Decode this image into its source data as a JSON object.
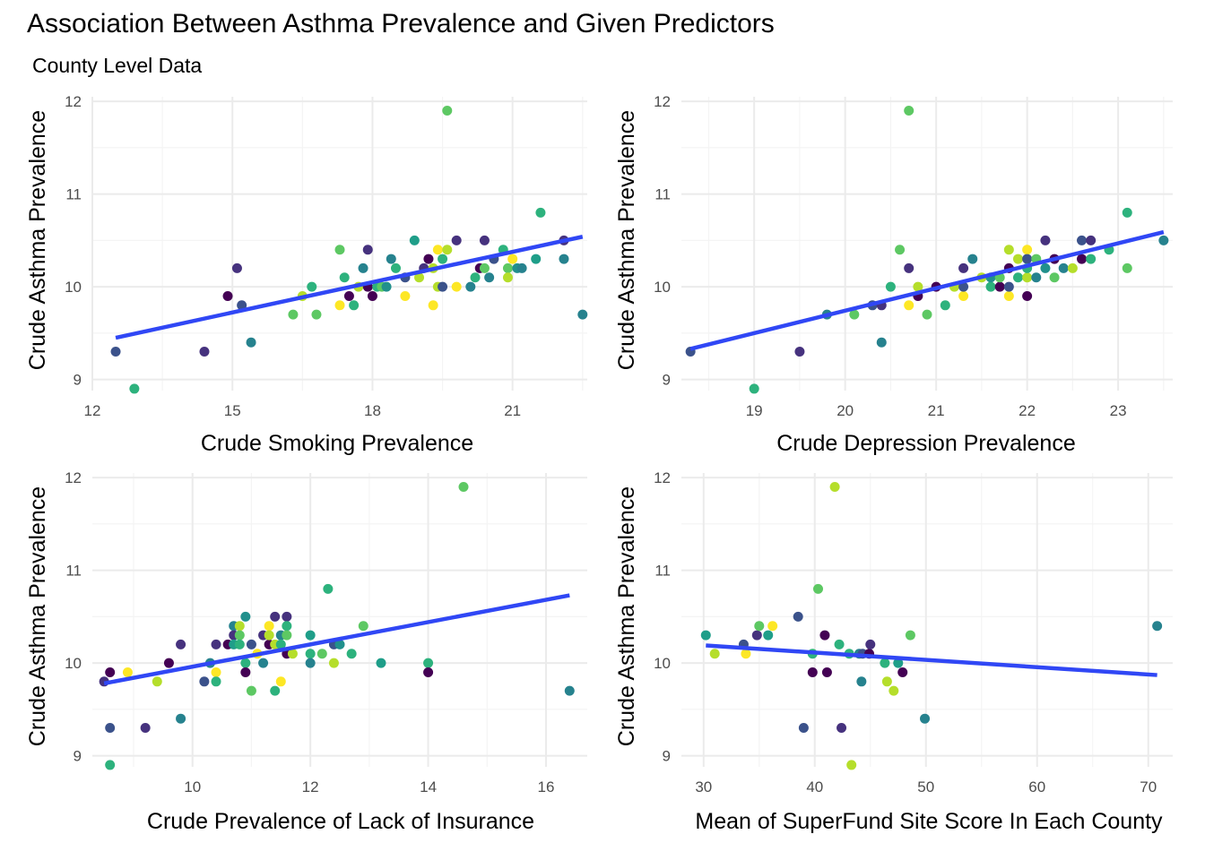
{
  "title": "Association Between Asthma Prevalence and Given Predictors",
  "subtitle": "County Level Data",
  "colors": {
    "trend_line": "#3047f5",
    "grid": "#ebebeb",
    "tick_text": "#4d4d4d",
    "point_palette": [
      "#440154",
      "#3b528b",
      "#21908c",
      "#2db27d",
      "#5dc863",
      "#b5de2b",
      "#fde725",
      "#26828e",
      "#46327e",
      "#1f9e89"
    ]
  },
  "chart_data": [
    {
      "type": "scatter",
      "xlabel": "Crude Smoking Prevalence",
      "ylabel": "Crude Asthma Prevalence",
      "xlim": [
        12,
        22.6
      ],
      "ylim": [
        8.88,
        12.05
      ],
      "x_ticks": [
        12,
        15,
        18,
        21
      ],
      "y_ticks": [
        9,
        10,
        11,
        12
      ],
      "trend": {
        "x": [
          12.5,
          22.5
        ],
        "y": [
          9.45,
          10.54
        ]
      },
      "points": [
        {
          "x": 12.5,
          "y": 9.3,
          "c": 1
        },
        {
          "x": 12.9,
          "y": 8.9,
          "c": 3
        },
        {
          "x": 14.4,
          "y": 9.3,
          "c": 8
        },
        {
          "x": 14.9,
          "y": 9.9,
          "c": 0
        },
        {
          "x": 15.1,
          "y": 10.2,
          "c": 8
        },
        {
          "x": 15.2,
          "y": 9.8,
          "c": 1
        },
        {
          "x": 15.4,
          "y": 9.4,
          "c": 7
        },
        {
          "x": 16.3,
          "y": 9.7,
          "c": 4
        },
        {
          "x": 16.5,
          "y": 9.9,
          "c": 5
        },
        {
          "x": 16.7,
          "y": 10.0,
          "c": 3
        },
        {
          "x": 16.8,
          "y": 9.7,
          "c": 4
        },
        {
          "x": 17.3,
          "y": 10.4,
          "c": 4
        },
        {
          "x": 17.3,
          "y": 9.8,
          "c": 6
        },
        {
          "x": 17.4,
          "y": 10.1,
          "c": 3
        },
        {
          "x": 17.5,
          "y": 9.9,
          "c": 0
        },
        {
          "x": 17.6,
          "y": 9.8,
          "c": 3
        },
        {
          "x": 17.7,
          "y": 10.0,
          "c": 5
        },
        {
          "x": 17.8,
          "y": 10.2,
          "c": 7
        },
        {
          "x": 17.9,
          "y": 10.4,
          "c": 8
        },
        {
          "x": 17.9,
          "y": 10.0,
          "c": 0
        },
        {
          "x": 18.0,
          "y": 9.9,
          "c": 0
        },
        {
          "x": 18.1,
          "y": 10.0,
          "c": 3
        },
        {
          "x": 18.2,
          "y": 10.0,
          "c": 4
        },
        {
          "x": 18.3,
          "y": 10.0,
          "c": 2
        },
        {
          "x": 18.4,
          "y": 10.3,
          "c": 7
        },
        {
          "x": 18.5,
          "y": 10.2,
          "c": 3
        },
        {
          "x": 18.7,
          "y": 9.9,
          "c": 6
        },
        {
          "x": 18.7,
          "y": 10.1,
          "c": 1
        },
        {
          "x": 18.9,
          "y": 10.5,
          "c": 9
        },
        {
          "x": 19.0,
          "y": 10.1,
          "c": 5
        },
        {
          "x": 19.1,
          "y": 10.2,
          "c": 8
        },
        {
          "x": 19.2,
          "y": 10.3,
          "c": 0
        },
        {
          "x": 19.3,
          "y": 10.2,
          "c": 5
        },
        {
          "x": 19.3,
          "y": 9.8,
          "c": 6
        },
        {
          "x": 19.4,
          "y": 10.4,
          "c": 6
        },
        {
          "x": 19.4,
          "y": 10.0,
          "c": 5
        },
        {
          "x": 19.5,
          "y": 10.0,
          "c": 1
        },
        {
          "x": 19.5,
          "y": 10.3,
          "c": 3
        },
        {
          "x": 19.6,
          "y": 11.9,
          "c": 4
        },
        {
          "x": 19.6,
          "y": 10.4,
          "c": 5
        },
        {
          "x": 19.8,
          "y": 10.0,
          "c": 6
        },
        {
          "x": 19.8,
          "y": 10.5,
          "c": 8
        },
        {
          "x": 20.1,
          "y": 10.0,
          "c": 7
        },
        {
          "x": 20.2,
          "y": 10.1,
          "c": 3
        },
        {
          "x": 20.3,
          "y": 10.2,
          "c": 0
        },
        {
          "x": 20.4,
          "y": 10.5,
          "c": 8
        },
        {
          "x": 20.4,
          "y": 10.2,
          "c": 4
        },
        {
          "x": 20.5,
          "y": 10.1,
          "c": 7
        },
        {
          "x": 20.6,
          "y": 10.3,
          "c": 1
        },
        {
          "x": 20.8,
          "y": 10.4,
          "c": 3
        },
        {
          "x": 20.9,
          "y": 10.2,
          "c": 4
        },
        {
          "x": 20.9,
          "y": 10.1,
          "c": 5
        },
        {
          "x": 21.0,
          "y": 10.3,
          "c": 6
        },
        {
          "x": 21.1,
          "y": 10.2,
          "c": 2
        },
        {
          "x": 21.2,
          "y": 10.2,
          "c": 7
        },
        {
          "x": 21.5,
          "y": 10.3,
          "c": 9
        },
        {
          "x": 21.6,
          "y": 10.8,
          "c": 3
        },
        {
          "x": 22.1,
          "y": 10.5,
          "c": 8
        },
        {
          "x": 22.1,
          "y": 10.3,
          "c": 7
        },
        {
          "x": 22.5,
          "y": 9.7,
          "c": 7
        }
      ]
    },
    {
      "type": "scatter",
      "xlabel": "Crude Depression Prevalence",
      "ylabel": "Crude Asthma Prevalence",
      "xlim": [
        18.2,
        23.6
      ],
      "ylim": [
        8.88,
        12.05
      ],
      "x_ticks": [
        19,
        20,
        21,
        22,
        23
      ],
      "y_ticks": [
        9,
        10,
        11,
        12
      ],
      "trend": {
        "x": [
          18.3,
          23.5
        ],
        "y": [
          9.33,
          10.59
        ]
      },
      "points": [
        {
          "x": 18.3,
          "y": 9.3,
          "c": 1
        },
        {
          "x": 19.0,
          "y": 8.9,
          "c": 3
        },
        {
          "x": 19.5,
          "y": 9.3,
          "c": 8
        },
        {
          "x": 19.8,
          "y": 9.7,
          "c": 7
        },
        {
          "x": 20.1,
          "y": 9.7,
          "c": 4
        },
        {
          "x": 20.3,
          "y": 9.8,
          "c": 1
        },
        {
          "x": 20.4,
          "y": 9.8,
          "c": 8
        },
        {
          "x": 20.4,
          "y": 9.4,
          "c": 7
        },
        {
          "x": 20.5,
          "y": 10.0,
          "c": 3
        },
        {
          "x": 20.6,
          "y": 10.4,
          "c": 4
        },
        {
          "x": 20.7,
          "y": 10.2,
          "c": 8
        },
        {
          "x": 20.7,
          "y": 11.9,
          "c": 4
        },
        {
          "x": 20.7,
          "y": 9.8,
          "c": 6
        },
        {
          "x": 20.8,
          "y": 10.0,
          "c": 5
        },
        {
          "x": 20.8,
          "y": 9.9,
          "c": 0
        },
        {
          "x": 20.9,
          "y": 9.7,
          "c": 4
        },
        {
          "x": 21.0,
          "y": 10.0,
          "c": 0
        },
        {
          "x": 21.1,
          "y": 9.8,
          "c": 3
        },
        {
          "x": 21.2,
          "y": 10.0,
          "c": 5
        },
        {
          "x": 21.3,
          "y": 10.2,
          "c": 8
        },
        {
          "x": 21.3,
          "y": 9.9,
          "c": 6
        },
        {
          "x": 21.3,
          "y": 10.0,
          "c": 1
        },
        {
          "x": 21.4,
          "y": 10.3,
          "c": 7
        },
        {
          "x": 21.5,
          "y": 10.1,
          "c": 5
        },
        {
          "x": 21.6,
          "y": 10.0,
          "c": 3
        },
        {
          "x": 21.6,
          "y": 10.1,
          "c": 2
        },
        {
          "x": 21.7,
          "y": 10.0,
          "c": 0
        },
        {
          "x": 21.7,
          "y": 10.1,
          "c": 4
        },
        {
          "x": 21.8,
          "y": 9.9,
          "c": 6
        },
        {
          "x": 21.8,
          "y": 10.4,
          "c": 5
        },
        {
          "x": 21.8,
          "y": 10.2,
          "c": 0
        },
        {
          "x": 21.8,
          "y": 10.0,
          "c": 1
        },
        {
          "x": 21.9,
          "y": 10.3,
          "c": 5
        },
        {
          "x": 21.9,
          "y": 10.1,
          "c": 3
        },
        {
          "x": 22.0,
          "y": 10.4,
          "c": 6
        },
        {
          "x": 22.0,
          "y": 10.3,
          "c": 1
        },
        {
          "x": 22.0,
          "y": 10.1,
          "c": 5
        },
        {
          "x": 22.0,
          "y": 9.9,
          "c": 0
        },
        {
          "x": 22.0,
          "y": 10.2,
          "c": 3
        },
        {
          "x": 22.1,
          "y": 10.3,
          "c": 4
        },
        {
          "x": 22.1,
          "y": 10.1,
          "c": 7
        },
        {
          "x": 22.2,
          "y": 10.2,
          "c": 2
        },
        {
          "x": 22.2,
          "y": 10.5,
          "c": 8
        },
        {
          "x": 22.3,
          "y": 10.3,
          "c": 0
        },
        {
          "x": 22.3,
          "y": 10.1,
          "c": 4
        },
        {
          "x": 22.4,
          "y": 10.2,
          "c": 7
        },
        {
          "x": 22.5,
          "y": 10.2,
          "c": 5
        },
        {
          "x": 22.6,
          "y": 10.5,
          "c": 1
        },
        {
          "x": 22.6,
          "y": 10.3,
          "c": 0
        },
        {
          "x": 22.7,
          "y": 10.5,
          "c": 8
        },
        {
          "x": 22.7,
          "y": 10.3,
          "c": 3
        },
        {
          "x": 22.9,
          "y": 10.4,
          "c": 3
        },
        {
          "x": 23.1,
          "y": 10.8,
          "c": 3
        },
        {
          "x": 23.1,
          "y": 10.2,
          "c": 4
        },
        {
          "x": 23.5,
          "y": 10.5,
          "c": 7
        }
      ]
    },
    {
      "type": "scatter",
      "xlabel": "Crude Prevalence of Lack of Insurance",
      "ylabel": "Crude Asthma Prevalence",
      "xlim": [
        8.3,
        16.7
      ],
      "ylim": [
        8.88,
        12.05
      ],
      "x_ticks": [
        10,
        12,
        14,
        16
      ],
      "y_ticks": [
        9,
        10,
        11,
        12
      ],
      "trend": {
        "x": [
          8.5,
          16.4
        ],
        "y": [
          9.78,
          10.73
        ]
      },
      "points": [
        {
          "x": 8.5,
          "y": 9.8,
          "c": 8
        },
        {
          "x": 8.6,
          "y": 9.9,
          "c": 0
        },
        {
          "x": 8.6,
          "y": 9.3,
          "c": 1
        },
        {
          "x": 8.6,
          "y": 8.9,
          "c": 3
        },
        {
          "x": 8.9,
          "y": 9.9,
          "c": 6
        },
        {
          "x": 9.2,
          "y": 9.3,
          "c": 8
        },
        {
          "x": 9.4,
          "y": 9.8,
          "c": 5
        },
        {
          "x": 9.6,
          "y": 10.0,
          "c": 0
        },
        {
          "x": 9.8,
          "y": 10.2,
          "c": 8
        },
        {
          "x": 9.8,
          "y": 9.4,
          "c": 7
        },
        {
          "x": 10.2,
          "y": 9.8,
          "c": 1
        },
        {
          "x": 10.3,
          "y": 10.0,
          "c": 7
        },
        {
          "x": 10.4,
          "y": 10.2,
          "c": 8
        },
        {
          "x": 10.4,
          "y": 9.9,
          "c": 6
        },
        {
          "x": 10.4,
          "y": 9.8,
          "c": 3
        },
        {
          "x": 10.6,
          "y": 10.2,
          "c": 0
        },
        {
          "x": 10.7,
          "y": 10.4,
          "c": 7
        },
        {
          "x": 10.7,
          "y": 10.3,
          "c": 8
        },
        {
          "x": 10.7,
          "y": 10.2,
          "c": 9
        },
        {
          "x": 10.8,
          "y": 10.4,
          "c": 5
        },
        {
          "x": 10.8,
          "y": 10.3,
          "c": 4
        },
        {
          "x": 10.8,
          "y": 10.2,
          "c": 3
        },
        {
          "x": 10.9,
          "y": 10.5,
          "c": 2
        },
        {
          "x": 10.9,
          "y": 10.0,
          "c": 3
        },
        {
          "x": 10.9,
          "y": 9.9,
          "c": 0
        },
        {
          "x": 11.0,
          "y": 10.2,
          "c": 1
        },
        {
          "x": 11.0,
          "y": 9.7,
          "c": 4
        },
        {
          "x": 11.1,
          "y": 10.1,
          "c": 6
        },
        {
          "x": 11.2,
          "y": 10.3,
          "c": 8
        },
        {
          "x": 11.2,
          "y": 10.0,
          "c": 7
        },
        {
          "x": 11.3,
          "y": 10.4,
          "c": 6
        },
        {
          "x": 11.3,
          "y": 10.2,
          "c": 0
        },
        {
          "x": 11.3,
          "y": 10.3,
          "c": 5
        },
        {
          "x": 11.4,
          "y": 10.5,
          "c": 8
        },
        {
          "x": 11.4,
          "y": 10.2,
          "c": 5
        },
        {
          "x": 11.4,
          "y": 9.7,
          "c": 3
        },
        {
          "x": 11.5,
          "y": 10.3,
          "c": 7
        },
        {
          "x": 11.5,
          "y": 10.2,
          "c": 3
        },
        {
          "x": 11.5,
          "y": 9.8,
          "c": 6
        },
        {
          "x": 11.6,
          "y": 10.5,
          "c": 8
        },
        {
          "x": 11.6,
          "y": 10.4,
          "c": 3
        },
        {
          "x": 11.6,
          "y": 10.3,
          "c": 4
        },
        {
          "x": 11.6,
          "y": 10.1,
          "c": 0
        },
        {
          "x": 11.7,
          "y": 10.1,
          "c": 5
        },
        {
          "x": 12.0,
          "y": 10.3,
          "c": 9
        },
        {
          "x": 12.0,
          "y": 10.1,
          "c": 3
        },
        {
          "x": 12.0,
          "y": 10.0,
          "c": 7
        },
        {
          "x": 12.2,
          "y": 10.1,
          "c": 4
        },
        {
          "x": 12.3,
          "y": 10.8,
          "c": 3
        },
        {
          "x": 12.4,
          "y": 10.2,
          "c": 1
        },
        {
          "x": 12.4,
          "y": 10.0,
          "c": 5
        },
        {
          "x": 12.5,
          "y": 10.2,
          "c": 2
        },
        {
          "x": 12.7,
          "y": 10.1,
          "c": 3
        },
        {
          "x": 12.9,
          "y": 10.4,
          "c": 4
        },
        {
          "x": 13.2,
          "y": 10.0,
          "c": 9
        },
        {
          "x": 14.0,
          "y": 10.0,
          "c": 3
        },
        {
          "x": 14.0,
          "y": 9.9,
          "c": 0
        },
        {
          "x": 14.6,
          "y": 11.9,
          "c": 4
        },
        {
          "x": 16.4,
          "y": 9.7,
          "c": 7
        }
      ]
    },
    {
      "type": "scatter",
      "xlabel": "Mean of SuperFund Site Score In Each County",
      "ylabel": "Crude Asthma Prevalence",
      "xlim": [
        28,
        72.2
      ],
      "ylim": [
        8.88,
        12.05
      ],
      "x_ticks": [
        30,
        40,
        50,
        60,
        70
      ],
      "y_ticks": [
        9,
        10,
        11,
        12
      ],
      "trend": {
        "x": [
          30.2,
          70.8
        ],
        "y": [
          10.19,
          9.87
        ]
      },
      "points": [
        {
          "x": 30.2,
          "y": 10.3,
          "c": 9
        },
        {
          "x": 31.0,
          "y": 10.1,
          "c": 5
        },
        {
          "x": 33.6,
          "y": 10.2,
          "c": 1
        },
        {
          "x": 33.8,
          "y": 10.1,
          "c": 6
        },
        {
          "x": 34.8,
          "y": 10.3,
          "c": 8
        },
        {
          "x": 35.0,
          "y": 10.4,
          "c": 4
        },
        {
          "x": 35.8,
          "y": 10.3,
          "c": 9
        },
        {
          "x": 36.2,
          "y": 10.4,
          "c": 6
        },
        {
          "x": 38.5,
          "y": 10.5,
          "c": 1
        },
        {
          "x": 39.0,
          "y": 9.3,
          "c": 1
        },
        {
          "x": 39.8,
          "y": 10.1,
          "c": 3
        },
        {
          "x": 39.8,
          "y": 9.9,
          "c": 0
        },
        {
          "x": 40.3,
          "y": 10.8,
          "c": 4
        },
        {
          "x": 40.9,
          "y": 10.3,
          "c": 0
        },
        {
          "x": 41.1,
          "y": 9.9,
          "c": 0
        },
        {
          "x": 41.8,
          "y": 11.9,
          "c": 5
        },
        {
          "x": 42.2,
          "y": 10.2,
          "c": 3
        },
        {
          "x": 42.4,
          "y": 9.3,
          "c": 8
        },
        {
          "x": 43.1,
          "y": 10.1,
          "c": 3
        },
        {
          "x": 43.3,
          "y": 8.9,
          "c": 5
        },
        {
          "x": 44.0,
          "y": 10.1,
          "c": 7
        },
        {
          "x": 44.2,
          "y": 9.8,
          "c": 7
        },
        {
          "x": 44.3,
          "y": 10.1,
          "c": 1
        },
        {
          "x": 44.9,
          "y": 10.1,
          "c": 0
        },
        {
          "x": 45.0,
          "y": 10.2,
          "c": 8
        },
        {
          "x": 46.3,
          "y": 10.0,
          "c": 3
        },
        {
          "x": 46.5,
          "y": 9.8,
          "c": 5
        },
        {
          "x": 47.1,
          "y": 9.7,
          "c": 5
        },
        {
          "x": 47.5,
          "y": 10.0,
          "c": 9
        },
        {
          "x": 47.9,
          "y": 9.9,
          "c": 0
        },
        {
          "x": 48.6,
          "y": 10.3,
          "c": 4
        },
        {
          "x": 49.9,
          "y": 9.4,
          "c": 7
        },
        {
          "x": 70.8,
          "y": 10.4,
          "c": 7
        }
      ]
    }
  ]
}
